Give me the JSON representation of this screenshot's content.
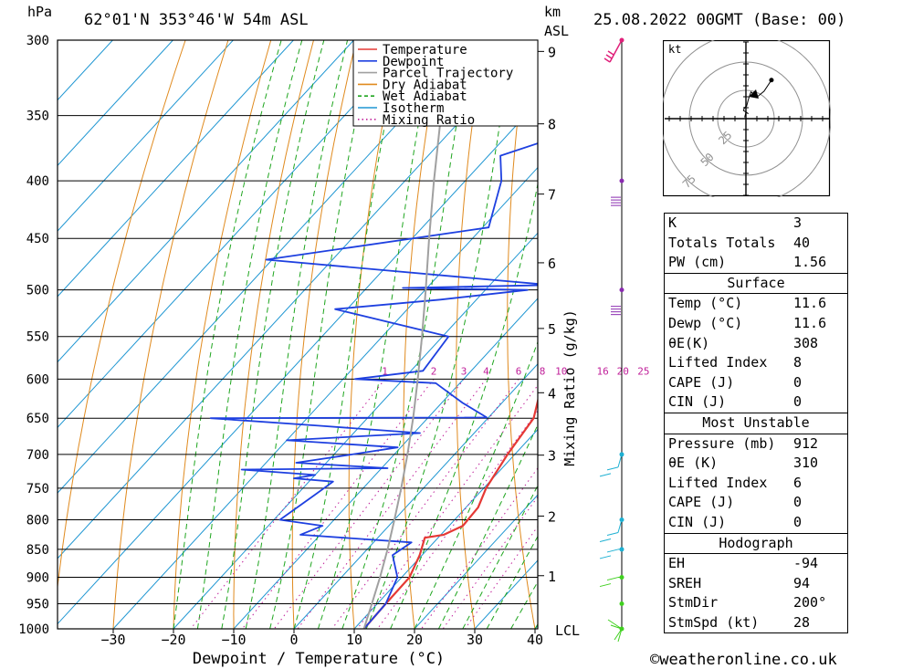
{
  "header": {
    "hpa_label": "hPa",
    "location": "62°01'N 353°46'W 54m ASL",
    "km_label": "km",
    "asl_label": "ASL",
    "datetime": "25.08.2022 00GMT (Base: 00)"
  },
  "legend": [
    {
      "name": "Temperature",
      "color": "#e53935",
      "style": "solid"
    },
    {
      "name": "Dewpoint",
      "color": "#1e40e0",
      "style": "solid"
    },
    {
      "name": "Parcel Trajectory",
      "color": "#a0a0a0",
      "style": "solid"
    },
    {
      "name": "Dry Adiabat",
      "color": "#e08a1e",
      "style": "solid"
    },
    {
      "name": "Wet Adiabat",
      "color": "#1ea51e",
      "style": "dash"
    },
    {
      "name": "Isotherm",
      "color": "#1e96d2",
      "style": "solid"
    },
    {
      "name": "Mixing Ratio",
      "color": "#c0209a",
      "style": "dot"
    }
  ],
  "colors": {
    "temperature": "#e53935",
    "dewpoint": "#1e40e0",
    "parcel": "#a0a0a0",
    "dry": "#e08a1e",
    "wet": "#1ea51e",
    "isotherm": "#1e96d2",
    "mixing": "#c0209a",
    "wind_upper": "#e0207a",
    "wind_mid": "#8a2ab0",
    "wind_low": "#1eb0d2",
    "wind_surface": "#40d020"
  },
  "chart_data": {
    "type": "line",
    "title": "",
    "xlabel": "Dewpoint / Temperature (°C)",
    "ylabel": "hPa",
    "x_ticks": [
      -30,
      -20,
      -10,
      0,
      10,
      20,
      30,
      40
    ],
    "xlim": [
      -40,
      40
    ],
    "ylim": [
      1000,
      300
    ],
    "pressure_levels": [
      300,
      350,
      400,
      450,
      500,
      550,
      600,
      650,
      700,
      750,
      800,
      850,
      900,
      950,
      1000
    ],
    "km_ticks": [
      {
        "km": 1,
        "p": 897
      },
      {
        "km": 2,
        "p": 794
      },
      {
        "km": 3,
        "p": 701
      },
      {
        "km": 4,
        "p": 617
      },
      {
        "km": 5,
        "p": 541
      },
      {
        "km": 6,
        "p": 473
      },
      {
        "km": 7,
        "p": 411
      },
      {
        "km": 8,
        "p": 356
      },
      {
        "km": 9,
        "p": 307
      }
    ],
    "lcl_label": "LCL",
    "lcl_pressure": 1000,
    "mixing_ratio_title": "Mixing Ratio (g/kg)",
    "mixing_ratios": [
      1,
      2,
      3,
      4,
      6,
      8,
      10,
      16,
      20,
      25
    ],
    "series": [
      {
        "name": "Temperature",
        "points": [
          [
            1000,
            11.6
          ],
          [
            950,
            11.4
          ],
          [
            900,
            11.3
          ],
          [
            860,
            9.6
          ],
          [
            830,
            7.8
          ],
          [
            825,
            10.5
          ],
          [
            810,
            12.3
          ],
          [
            780,
            12.0
          ],
          [
            750,
            10.4
          ],
          [
            700,
            8.8
          ],
          [
            650,
            7.6
          ],
          [
            600,
            3.2
          ],
          [
            560,
            0.7
          ],
          [
            530,
            0.6
          ],
          [
            500,
            -0.8
          ],
          [
            470,
            -2.6
          ],
          [
            450,
            -4.5
          ],
          [
            420,
            -6.6
          ],
          [
            400,
            -11.0
          ],
          [
            370,
            -14.8
          ],
          [
            350,
            -17.6
          ],
          [
            320,
            -22.8
          ],
          [
            300,
            -27.0
          ]
        ]
      },
      {
        "name": "Dewpoint",
        "points": [
          [
            1000,
            11.6
          ],
          [
            950,
            11.4
          ],
          [
            900,
            9.3
          ],
          [
            860,
            5.1
          ],
          [
            838,
            6.3
          ],
          [
            825,
            -13.3
          ],
          [
            810,
            -11.0
          ],
          [
            800,
            -19.0
          ],
          [
            760,
            -17.0
          ],
          [
            740,
            -16.0
          ],
          [
            735,
            -23.0
          ],
          [
            730,
            -20.0
          ],
          [
            722,
            -33.0
          ],
          [
            720,
            -9.0
          ],
          [
            712,
            -25.0
          ],
          [
            700,
            -17.0
          ],
          [
            690,
            -10.5
          ],
          [
            680,
            -30.0
          ],
          [
            670,
            -9.0
          ],
          [
            660,
            -27.0
          ],
          [
            650,
            -46.0
          ],
          [
            649,
            -0.3
          ],
          [
            630,
            -6.5
          ],
          [
            605,
            -14.0
          ],
          [
            600,
            -28.0
          ],
          [
            590,
            -18.0
          ],
          [
            550,
            -19.0
          ],
          [
            520,
            -42.0
          ],
          [
            510,
            -26.0
          ],
          [
            500,
            -13.0
          ],
          [
            498,
            -34.0
          ],
          [
            495,
            -10.0
          ],
          [
            470,
            -61.0
          ],
          [
            440,
            -29.0
          ],
          [
            400,
            -34.0
          ],
          [
            380,
            -38.0
          ],
          [
            350,
            -24.0
          ],
          [
            330,
            -26.0
          ],
          [
            300,
            -41.0
          ]
        ]
      },
      {
        "name": "Parcel Trajectory",
        "points": [
          [
            1000,
            11.6
          ],
          [
            950,
            9.1
          ],
          [
            900,
            6.4
          ],
          [
            850,
            3.4
          ],
          [
            800,
            0.0
          ],
          [
            750,
            -3.7
          ],
          [
            700,
            -7.8
          ],
          [
            650,
            -12.4
          ],
          [
            600,
            -17.6
          ],
          [
            550,
            -23.4
          ],
          [
            500,
            -29.9
          ],
          [
            450,
            -37.2
          ],
          [
            400,
            -45.2
          ],
          [
            350,
            -54.0
          ],
          [
            300,
            -63.0
          ]
        ]
      }
    ]
  },
  "hodograph": {
    "unit": "kt",
    "ring_labels": [
      "25",
      "50",
      "75"
    ],
    "points": [
      [
        -2,
        2
      ],
      [
        0,
        10
      ],
      [
        4,
        8
      ],
      [
        -4,
        13
      ],
      [
        -2,
        18
      ],
      [
        1,
        20
      ],
      [
        4,
        31
      ],
      [
        8,
        43
      ],
      [
        18,
        35
      ],
      [
        29,
        44
      ],
      [
        41,
        62
      ]
    ]
  },
  "indices": {
    "top": [
      {
        "label": "K",
        "value": "3"
      },
      {
        "label": "Totals Totals",
        "value": "40"
      },
      {
        "label": "PW (cm)",
        "value": "1.56"
      }
    ],
    "surface": {
      "title": "Surface",
      "rows": [
        {
          "label": "Temp (°C)",
          "value": "11.6"
        },
        {
          "label": "Dewp (°C)",
          "value": "11.6"
        },
        {
          "label": "θE(K)",
          "value": "308"
        },
        {
          "label": "Lifted Index",
          "value": "8"
        },
        {
          "label": "CAPE (J)",
          "value": "0"
        },
        {
          "label": "CIN (J)",
          "value": "0"
        }
      ]
    },
    "most_unstable": {
      "title": "Most Unstable",
      "rows": [
        {
          "label": "Pressure (mb)",
          "value": "912"
        },
        {
          "label": "θE (K)",
          "value": "310"
        },
        {
          "label": "Lifted Index",
          "value": "6"
        },
        {
          "label": "CAPE (J)",
          "value": "0"
        },
        {
          "label": "CIN (J)",
          "value": "0"
        }
      ]
    },
    "hodograph": {
      "title": "Hodograph",
      "rows": [
        {
          "label": "EH",
          "value": "-94"
        },
        {
          "label": "SREH",
          "value": "94"
        },
        {
          "label": "StmDir",
          "value": "200°"
        },
        {
          "label": "StmSpd (kt)",
          "value": "28"
        }
      ]
    }
  },
  "wind_profile_pressures": [
    300,
    400,
    500,
    700,
    800,
    850,
    900,
    950,
    1000
  ],
  "footer": "©weatheronline.co.uk"
}
